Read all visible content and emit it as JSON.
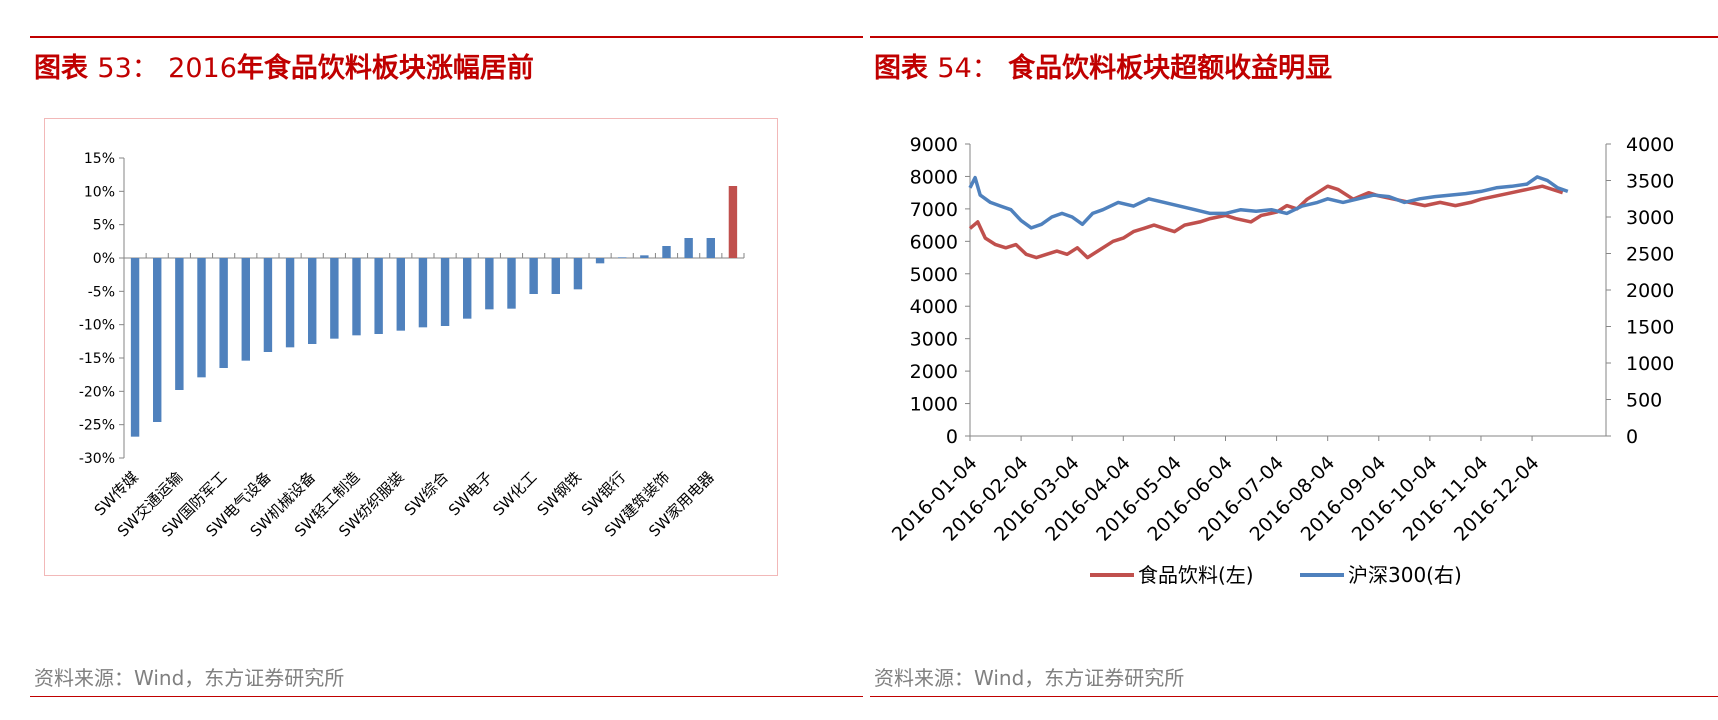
{
  "left": {
    "title_prefix": "图表",
    "title_num": "53：",
    "title_year": "2016",
    "title_text": "年食品饮料板块涨幅居前",
    "source": "资料来源：Wind，东方证券研究所"
  },
  "right": {
    "title_prefix": "图表",
    "title_num": "54：",
    "title_text": "食品饮料板块超额收益明显",
    "source": "资料来源：Wind，东方证券研究所"
  },
  "chart_data": [
    {
      "type": "bar",
      "title": "",
      "ylim": [
        -30,
        15
      ],
      "yticks": [
        "15%",
        "10%",
        "5%",
        "0%",
        "-5%",
        "-10%",
        "-15%",
        "-20%",
        "-25%",
        "-30%"
      ],
      "tick_values": [
        15,
        10,
        5,
        0,
        -5,
        -10,
        -15,
        -20,
        -25,
        -30
      ],
      "category_labels": [
        "SW传媒",
        "SW交通运输",
        "SW国防军工",
        "SW电气设备",
        "SW机械设备",
        "SW轻工制造",
        "SW纺织服装",
        "SW综合",
        "SW电子",
        "SW化工",
        "SW钢铁",
        "SW银行",
        "SW建筑装饰",
        "SW家用电器"
      ],
      "label_every": 2,
      "values": [
        -26.8,
        -24.6,
        -19.8,
        -17.9,
        -16.5,
        -15.4,
        -14.1,
        -13.4,
        -12.9,
        -12.1,
        -11.6,
        -11.4,
        -10.9,
        -10.4,
        -10.2,
        -9.1,
        -7.7,
        -7.6,
        -5.4,
        -5.4,
        -4.7,
        -0.8,
        0.1,
        0.4,
        1.8,
        3.0,
        3.0,
        10.8
      ],
      "colors": {
        "normal": "#4f81bd",
        "highlight": "#c0504d"
      },
      "highlight_index": 27
    },
    {
      "type": "line",
      "title": "",
      "xticks": [
        "2016-01-04",
        "2016-02-04",
        "2016-03-04",
        "2016-04-04",
        "2016-05-04",
        "2016-06-04",
        "2016-07-04",
        "2016-08-04",
        "2016-09-04",
        "2016-10-04",
        "2016-11-04",
        "2016-12-04"
      ],
      "ylim_left": [
        0,
        9000
      ],
      "yticks_left": [
        0,
        1000,
        2000,
        3000,
        4000,
        5000,
        6000,
        7000,
        8000,
        9000
      ],
      "ylim_right": [
        0,
        4000
      ],
      "yticks_right": [
        0,
        500,
        1000,
        1500,
        2000,
        2500,
        3000,
        3500,
        4000
      ],
      "legend_position": "bottom",
      "series": [
        {
          "name": "食品饮料(左)",
          "axis": "left",
          "color": "#c0504d",
          "x": [
            0,
            0.15,
            0.3,
            0.5,
            0.7,
            0.9,
            1.1,
            1.3,
            1.5,
            1.7,
            1.9,
            2.1,
            2.3,
            2.5,
            2.8,
            3.0,
            3.2,
            3.4,
            3.6,
            3.8,
            4.0,
            4.2,
            4.5,
            4.7,
            5.0,
            5.2,
            5.5,
            5.7,
            6.0,
            6.2,
            6.4,
            6.6,
            6.8,
            7.0,
            7.2,
            7.5,
            7.8,
            8.0,
            8.3,
            8.6,
            8.9,
            9.2,
            9.5,
            9.8,
            10.0,
            10.3,
            10.6,
            10.9,
            11.2,
            11.4,
            11.6
          ],
          "y": [
            6400,
            6600,
            6100,
            5900,
            5800,
            5900,
            5600,
            5500,
            5600,
            5700,
            5600,
            5800,
            5500,
            5700,
            6000,
            6100,
            6300,
            6400,
            6500,
            6400,
            6300,
            6500,
            6600,
            6700,
            6800,
            6700,
            6600,
            6800,
            6900,
            7100,
            7000,
            7300,
            7500,
            7700,
            7600,
            7300,
            7500,
            7400,
            7300,
            7200,
            7100,
            7200,
            7100,
            7200,
            7300,
            7400,
            7500,
            7600,
            7700,
            7600,
            7500
          ]
        },
        {
          "name": "沪深300(右)",
          "axis": "right",
          "color": "#4f81bd",
          "x": [
            0,
            0.1,
            0.2,
            0.4,
            0.6,
            0.8,
            1.0,
            1.2,
            1.4,
            1.6,
            1.8,
            2.0,
            2.2,
            2.4,
            2.6,
            2.9,
            3.2,
            3.5,
            3.8,
            4.1,
            4.4,
            4.7,
            5.0,
            5.3,
            5.6,
            5.9,
            6.2,
            6.5,
            6.8,
            7.0,
            7.3,
            7.6,
            7.9,
            8.2,
            8.5,
            8.8,
            9.1,
            9.4,
            9.7,
            10.0,
            10.3,
            10.6,
            10.9,
            11.1,
            11.3,
            11.5,
            11.7
          ],
          "y": [
            3400,
            3540,
            3300,
            3200,
            3150,
            3100,
            2950,
            2850,
            2900,
            3000,
            3050,
            3000,
            2900,
            3050,
            3100,
            3200,
            3150,
            3250,
            3200,
            3150,
            3100,
            3050,
            3050,
            3100,
            3080,
            3100,
            3050,
            3150,
            3200,
            3250,
            3200,
            3250,
            3300,
            3280,
            3200,
            3250,
            3280,
            3300,
            3320,
            3350,
            3400,
            3420,
            3450,
            3550,
            3500,
            3400,
            3350
          ]
        }
      ]
    }
  ]
}
